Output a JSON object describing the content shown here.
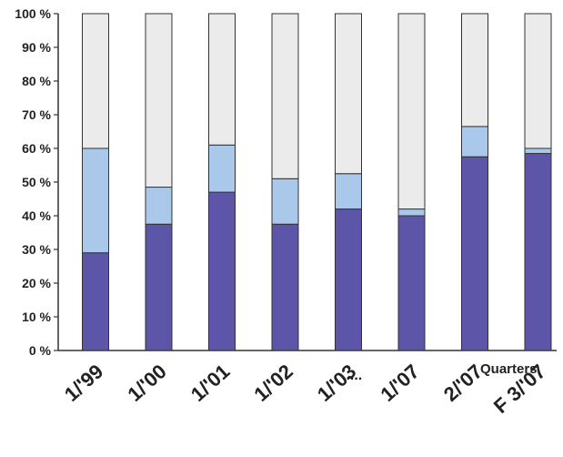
{
  "chart_data": {
    "type": "bar",
    "stacked": true,
    "categories": [
      "1/'99",
      "1/'00",
      "1/'01",
      "1/'02",
      "1/'03",
      "1/'07",
      "2/'07",
      "F 3/'07"
    ],
    "series": [
      {
        "values": [
          29,
          37.5,
          47,
          37.5,
          42,
          40,
          57.5,
          58.5
        ],
        "color": "#5c55a8"
      },
      {
        "values": [
          31,
          11,
          14,
          13.5,
          10.5,
          2,
          9,
          1.5
        ],
        "color": "#a9c8ea"
      },
      {
        "values": [
          40,
          51.5,
          39,
          49,
          47.5,
          58,
          33.5,
          40
        ],
        "color": "#ebebeb"
      }
    ],
    "ylim": [
      0,
      100
    ],
    "yticks": [
      "0 %",
      "10 %",
      "20 %",
      "30 %",
      "40 %",
      "50 %",
      "60 %",
      "70 %",
      "80 %",
      "90 %",
      "100 %"
    ],
    "xlabel": "Quarters",
    "ellipsis": ".....",
    "grid": false,
    "legend": "none"
  }
}
